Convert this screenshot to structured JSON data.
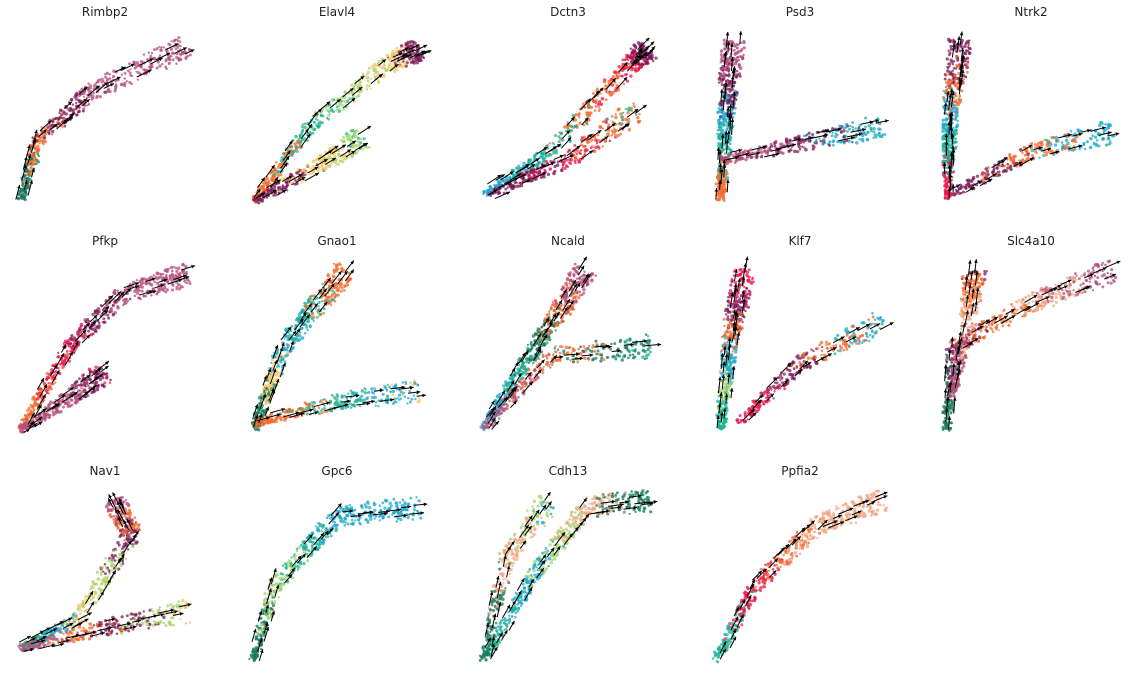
{
  "figure": {
    "chart_data": [
      {
        "type": "scatter",
        "title": "Rimbp2",
        "shape": "curve",
        "arm": [
          [
            0.02,
            0.99
          ],
          [
            0.12,
            0.62
          ],
          [
            0.45,
            0.33
          ],
          [
            0.97,
            0.08
          ]
        ],
        "colors": [
          "#1a7a5e",
          "#f26b2e",
          "#7b1a5a",
          "#b34d7a",
          "#b34d7a"
        ]
      },
      {
        "type": "scatter",
        "title": "Elavl4",
        "shape": "fork",
        "arm": [
          [
            0.03,
            0.99
          ],
          [
            0.35,
            0.55
          ],
          [
            0.8,
            0.18
          ],
          [
            0.97,
            0.1
          ]
        ],
        "arm2": [
          [
            0.03,
            0.99
          ],
          [
            0.4,
            0.78
          ],
          [
            0.65,
            0.62
          ]
        ],
        "colors": [
          "#f26b2e",
          "#1ab394",
          "#a8d36f",
          "#f6c96b",
          "#7b1a5a"
        ]
      },
      {
        "type": "scatter",
        "title": "Dctn3",
        "shape": "fork",
        "arm": [
          [
            0.02,
            0.95
          ],
          [
            0.4,
            0.7
          ],
          [
            0.85,
            0.2
          ],
          [
            0.95,
            0.1
          ]
        ],
        "arm2": [
          [
            0.05,
            0.95
          ],
          [
            0.5,
            0.75
          ],
          [
            0.9,
            0.45
          ]
        ],
        "colors": [
          "#1ba7cc",
          "#1ab394",
          "#f26b2e",
          "#e8174f",
          "#7b1a5a"
        ]
      },
      {
        "type": "scatter",
        "title": "Psd3",
        "shape": "L",
        "arm": [
          [
            0.05,
            0.98
          ],
          [
            0.08,
            0.5
          ],
          [
            0.12,
            0.05
          ]
        ],
        "arm2": [
          [
            0.05,
            0.75
          ],
          [
            0.5,
            0.65
          ],
          [
            0.97,
            0.55
          ]
        ],
        "colors": [
          "#f26b2e",
          "#1ab394",
          "#1ba7cc",
          "#7b1a5a",
          "#b34d7a"
        ]
      },
      {
        "type": "scatter",
        "title": "Ntrk2",
        "shape": "L",
        "arm": [
          [
            0.03,
            0.98
          ],
          [
            0.04,
            0.5
          ],
          [
            0.1,
            0.05
          ]
        ],
        "arm2": [
          [
            0.05,
            0.95
          ],
          [
            0.5,
            0.7
          ],
          [
            0.97,
            0.58
          ]
        ],
        "colors": [
          "#e8174f",
          "#1ab394",
          "#1ba7cc",
          "#f26b2e",
          "#7b1a5a"
        ]
      },
      {
        "type": "scatter",
        "title": "Pfkp",
        "shape": "fork",
        "arm": [
          [
            0.02,
            0.99
          ],
          [
            0.3,
            0.5
          ],
          [
            0.6,
            0.2
          ],
          [
            0.97,
            0.08
          ]
        ],
        "arm2": [
          [
            0.02,
            0.99
          ],
          [
            0.3,
            0.8
          ],
          [
            0.5,
            0.65
          ]
        ],
        "colors": [
          "#f26b2e",
          "#e8174f",
          "#7b1a5a",
          "#b34d7a",
          "#b34d7a"
        ]
      },
      {
        "type": "scatter",
        "title": "Gnao1",
        "shape": "L",
        "arm": [
          [
            0.03,
            0.98
          ],
          [
            0.2,
            0.5
          ],
          [
            0.55,
            0.05
          ]
        ],
        "arm2": [
          [
            0.03,
            0.95
          ],
          [
            0.5,
            0.82
          ],
          [
            0.97,
            0.76
          ]
        ],
        "colors": [
          "#1a7a5e",
          "#f6c96b",
          "#1ba7cc",
          "#1ab394",
          "#f26b2e"
        ]
      },
      {
        "type": "scatter",
        "title": "Ncald",
        "shape": "fork",
        "arm": [
          [
            0.02,
            0.98
          ],
          [
            0.35,
            0.45
          ],
          [
            0.6,
            0.05
          ]
        ],
        "arm2": [
          [
            0.02,
            0.98
          ],
          [
            0.4,
            0.55
          ],
          [
            0.97,
            0.5
          ]
        ],
        "colors": [
          "#1ba7cc",
          "#1ab394",
          "#1a7a5e",
          "#f26b2e",
          "#b34d7a"
        ]
      },
      {
        "type": "scatter",
        "title": "Klf7",
        "shape": "L",
        "arm": [
          [
            0.05,
            0.98
          ],
          [
            0.1,
            0.5
          ],
          [
            0.18,
            0.05
          ]
        ],
        "arm2": [
          [
            0.15,
            0.95
          ],
          [
            0.5,
            0.6
          ],
          [
            0.97,
            0.35
          ]
        ],
        "colors": [
          "#1ab394",
          "#a8d36f",
          "#1ba7cc",
          "#f26b2e",
          "#7b1a5a",
          "#e8174f"
        ]
      },
      {
        "type": "scatter",
        "title": "Slc4a10",
        "shape": "fork",
        "arm": [
          [
            0.02,
            0.99
          ],
          [
            0.06,
            0.5
          ],
          [
            0.5,
            0.25
          ],
          [
            0.97,
            0.05
          ]
        ],
        "arm2": [
          [
            0.05,
            0.8
          ],
          [
            0.15,
            0.3
          ],
          [
            0.18,
            0.05
          ]
        ],
        "colors": [
          "#1a7a5e",
          "#7b1a5a",
          "#f26b2e",
          "#f4a582",
          "#b34d7a"
        ]
      },
      {
        "type": "scatter",
        "title": "Nav1",
        "shape": "fork",
        "arm": [
          [
            0.02,
            0.92
          ],
          [
            0.35,
            0.75
          ],
          [
            0.65,
            0.25
          ],
          [
            0.55,
            0.05
          ]
        ],
        "arm2": [
          [
            0.02,
            0.92
          ],
          [
            0.5,
            0.8
          ],
          [
            0.97,
            0.7
          ]
        ],
        "colors": [
          "#1ab394",
          "#1ba7cc",
          "#f6c96b",
          "#a8d36f",
          "#7b1a5a",
          "#f26b2e",
          "#b34d7a"
        ]
      },
      {
        "type": "scatter",
        "title": "Gpc6",
        "shape": "curve",
        "arm": [
          [
            0.02,
            0.99
          ],
          [
            0.15,
            0.55
          ],
          [
            0.5,
            0.15
          ],
          [
            0.97,
            0.1
          ]
        ],
        "colors": [
          "#1a7a5e",
          "#a8d36f",
          "#1ab394",
          "#1ba7cc",
          "#1ba7cc"
        ]
      },
      {
        "type": "scatter",
        "title": "Cdh13",
        "shape": "fork",
        "arm": [
          [
            0.02,
            0.99
          ],
          [
            0.3,
            0.5
          ],
          [
            0.6,
            0.1
          ],
          [
            0.97,
            0.05
          ]
        ],
        "arm2": [
          [
            0.02,
            0.99
          ],
          [
            0.15,
            0.4
          ],
          [
            0.4,
            0.05
          ]
        ],
        "colors": [
          "#1ab394",
          "#1ba7cc",
          "#a8d36f",
          "#f4a582",
          "#1a7a5e"
        ]
      },
      {
        "type": "scatter",
        "title": "Ppfia2",
        "shape": "curve",
        "arm": [
          [
            0.02,
            0.99
          ],
          [
            0.25,
            0.55
          ],
          [
            0.6,
            0.2
          ],
          [
            0.97,
            0.05
          ]
        ],
        "colors": [
          "#1ab394",
          "#e8174f",
          "#f26b2e",
          "#f4a582",
          "#f4a582"
        ]
      }
    ]
  }
}
